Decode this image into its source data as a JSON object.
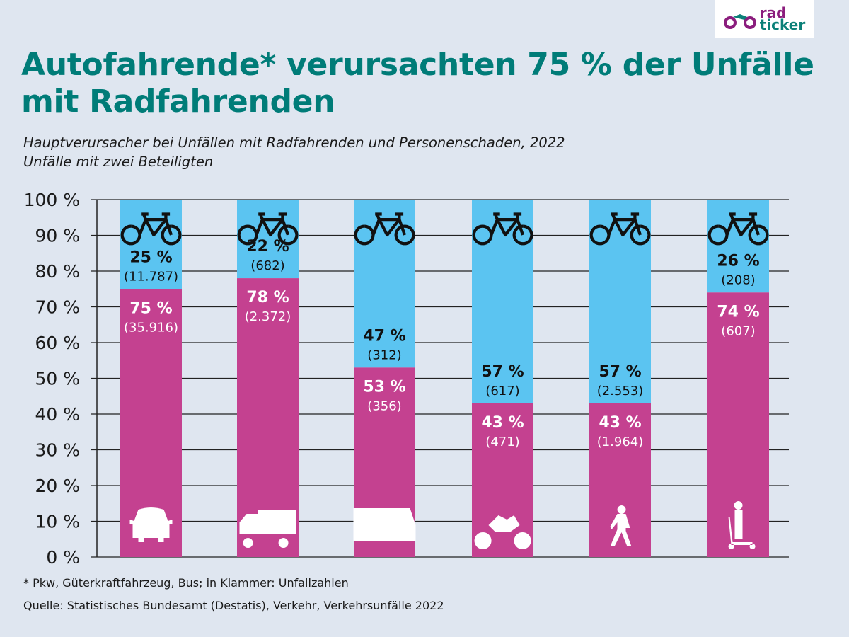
{
  "logo": {
    "text_line1": "rad",
    "text_line2": "ticker"
  },
  "title": "Autofahrende* verursachten 75 % der Unfälle mit Radfahrenden",
  "subtitle_line1": "Hauptverursacher bei Unfällen mit Radfahrenden und Personenschaden, 2022",
  "subtitle_line2": "Unfälle mit zwei Beteiligten",
  "footnote": "* Pkw, Güterkraftfahrzeug, Bus;  in Klammer: Unfallzahlen",
  "source": "Quelle: Statistisches Bundesamt (Destatis), Verkehr, Verkehrsunfälle 2022",
  "colors": {
    "bicycle": "#5bc4f1",
    "other_party": "#c44190",
    "title": "#007c78",
    "background": "#dfe6f0"
  },
  "chart_data": {
    "type": "bar",
    "stacked": true,
    "ylim": [
      0,
      100
    ],
    "yticks": [
      "0 %",
      "10 %",
      "20 %",
      "30 %",
      "40 %",
      "50 %",
      "60 %",
      "70 %",
      "80 %",
      "90 %",
      "100 %"
    ],
    "grid": true,
    "categories": [
      "car-icon",
      "truck-icon",
      "bus-icon",
      "motorcycle-icon",
      "pedestrian-icon",
      "scooter-icon"
    ],
    "top_icon": "bicycle-icon",
    "series": [
      {
        "key": "other",
        "values": [
          75,
          78,
          53,
          43,
          43,
          74
        ],
        "labels": [
          "75 %",
          "78 %",
          "53 %",
          "43 %",
          "43 %",
          "74 %"
        ],
        "counts": [
          "(35.916)",
          "(2.372)",
          "(356)",
          "(471)",
          "(1.964)",
          "(607)"
        ]
      },
      {
        "key": "bicycle",
        "values": [
          25,
          22,
          47,
          57,
          57,
          26
        ],
        "labels": [
          "25 %",
          "22 %",
          "47 %",
          "57 %",
          "57 %",
          "26 %"
        ],
        "counts": [
          "(11.787)",
          "(682)",
          "(312)",
          "(617)",
          "(2.553)",
          "(208)"
        ]
      }
    ]
  }
}
